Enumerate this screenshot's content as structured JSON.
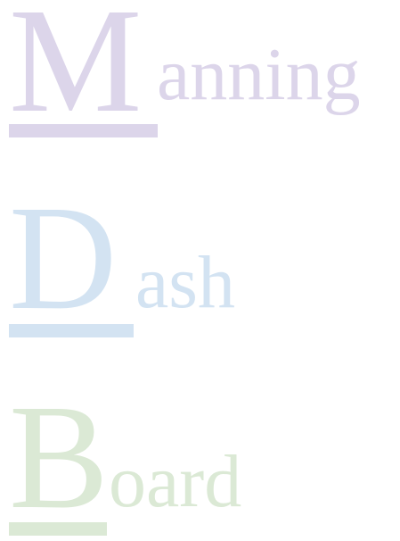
{
  "logo": {
    "words": [
      {
        "initial": "M",
        "rest": "anning",
        "color": "#dcd5ea"
      },
      {
        "initial": "D",
        "rest": "ash",
        "color": "#d3e3f2"
      },
      {
        "initial": "B",
        "rest": "oard",
        "color": "#dbe9d5"
      }
    ]
  }
}
